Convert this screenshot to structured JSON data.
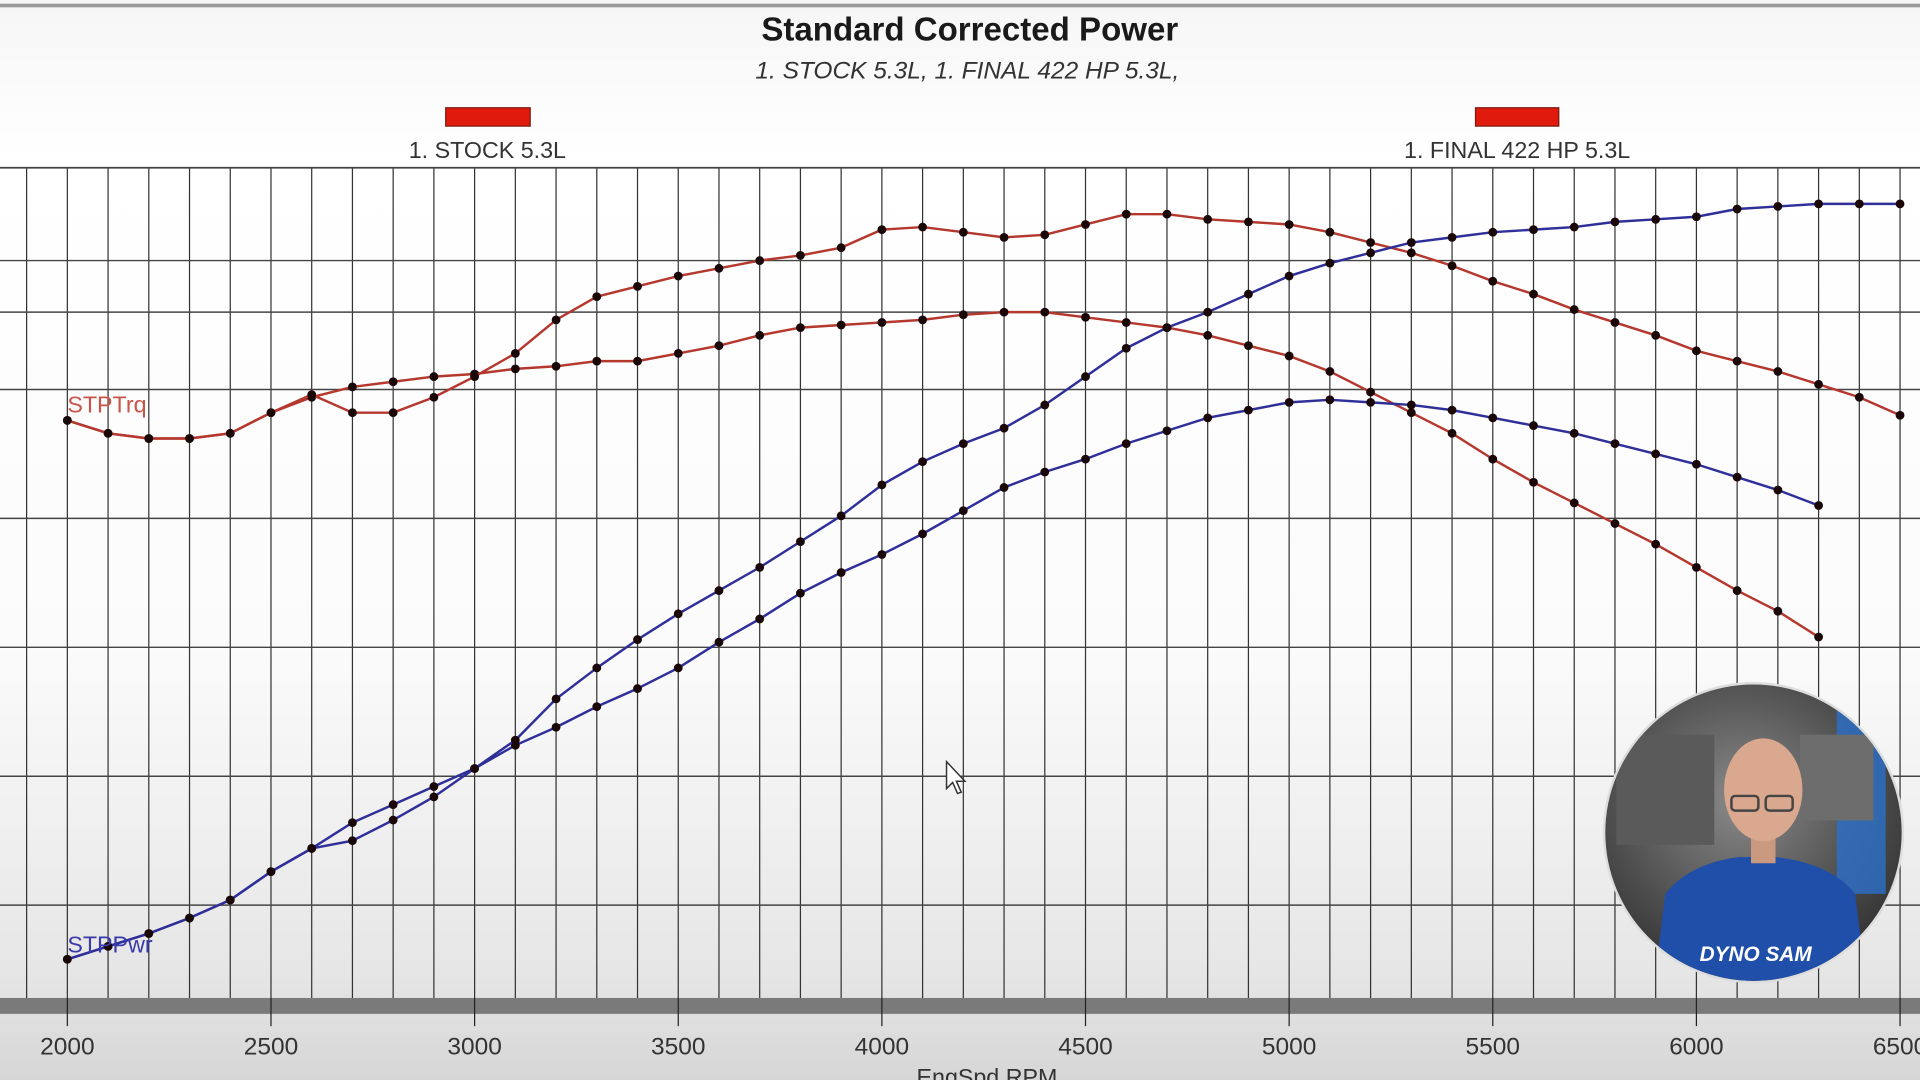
{
  "chart_data": {
    "type": "line",
    "title": "Standard Corrected Power",
    "subtitle": "1. STOCK 5.3L, 1. FINAL 422 HP 5.3L,",
    "xlabel": "EngSpd RPM",
    "ylabel": "",
    "xlim": [
      1835,
      6550
    ],
    "ylim": [
      114,
      436
    ],
    "x_ticks": [
      "2000",
      "2500",
      "3000",
      "3500",
      "4000",
      "4500",
      "5000",
      "5500",
      "6000",
      "6500"
    ],
    "grid": true,
    "legend": [
      {
        "name": "1. STOCK 5.3L",
        "color": "#e01a0c"
      },
      {
        "name": "1. FINAL 422 HP 5.3L",
        "color": "#e01a0c"
      }
    ],
    "legend_placement": "top",
    "series_labels": {
      "torque": "STPTrq",
      "power": "STPPwr"
    },
    "colors": {
      "torque": "#b5382e",
      "power": "#2f2f9a",
      "marker": "#1a0808"
    },
    "series": [
      {
        "name": "1. STOCK 5.3L",
        "quantity": "torque",
        "x_start": 2000,
        "x_step": 100,
        "values": [
          338,
          333,
          331,
          331,
          333,
          341,
          347,
          351,
          353,
          355,
          356,
          358,
          359,
          361,
          361,
          364,
          367,
          371,
          374,
          375,
          376,
          377,
          379,
          380,
          380,
          378,
          376,
          374,
          371,
          367,
          363,
          357,
          349,
          341,
          333,
          323,
          314,
          306,
          298,
          290,
          281,
          272,
          264,
          254
        ]
      },
      {
        "name": "1. FINAL 422 HP 5.3L",
        "quantity": "torque",
        "x_start": 2000,
        "x_step": 100,
        "values": [
          338,
          333,
          331,
          331,
          333,
          341,
          348,
          341,
          341,
          347,
          355,
          364,
          377,
          386,
          390,
          394,
          397,
          400,
          402,
          405,
          412,
          413,
          411,
          409,
          410,
          414,
          418,
          418,
          416,
          415,
          414,
          411,
          407,
          403,
          398,
          392,
          387,
          381,
          376,
          371,
          365,
          361,
          357,
          352,
          347,
          340
        ]
      },
      {
        "name": "1. STOCK 5.3L",
        "quantity": "power",
        "x_start": 2000,
        "x_step": 100,
        "values": [
          129,
          134,
          139,
          145,
          152,
          163,
          172,
          182,
          189,
          196,
          203,
          212,
          219,
          227,
          234,
          242,
          252,
          261,
          271,
          279,
          286,
          294,
          303,
          312,
          318,
          323,
          329,
          334,
          339,
          342,
          345,
          346,
          345,
          344,
          342,
          339,
          336,
          333,
          329,
          325,
          321,
          316,
          311,
          305
        ]
      },
      {
        "name": "1. FINAL 422 HP 5.3L",
        "quantity": "power",
        "x_start": 2000,
        "x_step": 100,
        "values": [
          129,
          134,
          139,
          145,
          152,
          163,
          172,
          175,
          183,
          192,
          203,
          214,
          230,
          242,
          253,
          263,
          272,
          281,
          291,
          301,
          313,
          322,
          329,
          335,
          344,
          355,
          366,
          374,
          380,
          387,
          394,
          399,
          403,
          407,
          409,
          411,
          412,
          413,
          415,
          416,
          417,
          420,
          421,
          422,
          422,
          422
        ]
      }
    ]
  },
  "webcam": {
    "shirt_logo": "DYNO SAM"
  }
}
